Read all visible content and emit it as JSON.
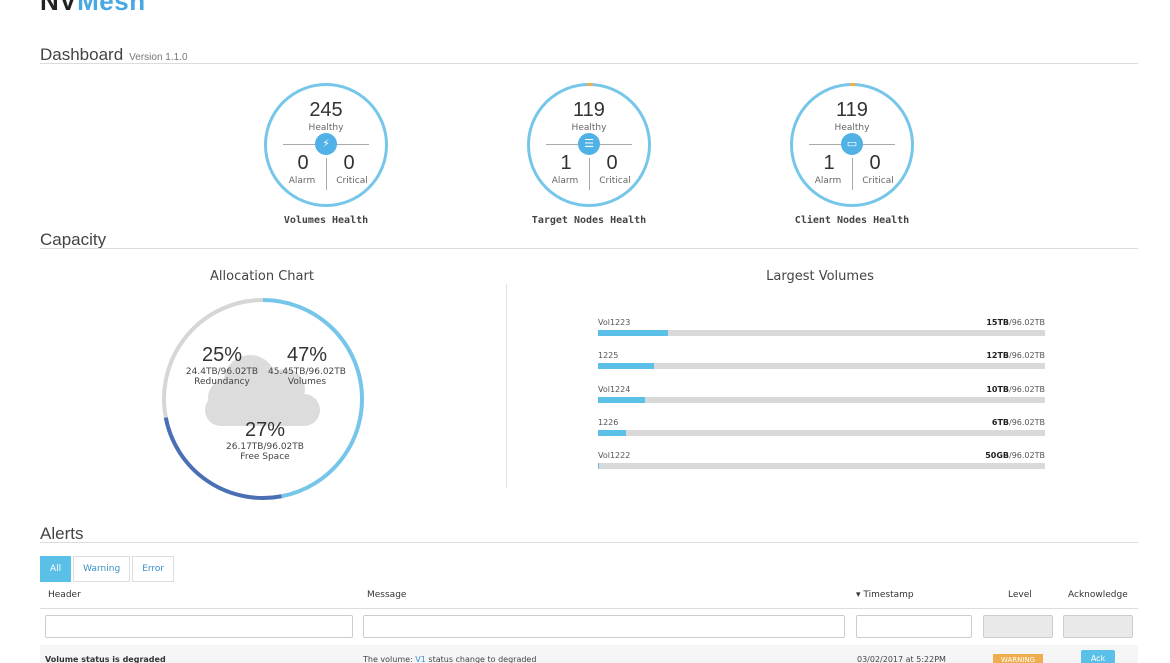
{
  "app": {
    "logo_nv": "NV",
    "logo_mesh": "Mesh"
  },
  "dashboard": {
    "title": "Dashboard",
    "version": "Version 1.1.0"
  },
  "health": [
    {
      "value": "245",
      "status": "Healthy",
      "alarm": "0",
      "critical": "0",
      "alarm_label": "Alarm",
      "critical_label": "Critical",
      "caption": "Volumes Health",
      "icon": "bolt-icon"
    },
    {
      "value": "119",
      "status": "Healthy",
      "alarm": "1",
      "critical": "0",
      "alarm_label": "Alarm",
      "critical_label": "Critical",
      "caption": "Target Nodes Health",
      "icon": "server-icon"
    },
    {
      "value": "119",
      "status": "Healthy",
      "alarm": "1",
      "critical": "0",
      "alarm_label": "Alarm",
      "critical_label": "Critical",
      "caption": "Client Nodes Health",
      "icon": "monitor-icon"
    }
  ],
  "capacity": {
    "title": "Capacity",
    "allocation_title": "Allocation Chart",
    "largest_title": "Largest Volumes",
    "allocation": [
      {
        "pct": "25%",
        "amount": "24.4TB/96.02TB",
        "label": "Redundancy",
        "color": "#4a6fb5"
      },
      {
        "pct": "47%",
        "amount": "45.45TB/96.02TB",
        "label": "Volumes",
        "color": "#76c6ea"
      },
      {
        "pct": "27%",
        "amount": "26.17TB/96.02TB",
        "label": "Free Space",
        "color": "#d6d6d6"
      }
    ],
    "volumes": [
      {
        "name": "Vol1223",
        "used": "15TB",
        "total": "/96.02TB",
        "fraction": 0.1562
      },
      {
        "name": "1225",
        "used": "12TB",
        "total": "/96.02TB",
        "fraction": 0.125
      },
      {
        "name": "Vol1224",
        "used": "10TB",
        "total": "/96.02TB",
        "fraction": 0.1041
      },
      {
        "name": "1226",
        "used": "6TB",
        "total": "/96.02TB",
        "fraction": 0.0625
      },
      {
        "name": "Vol1222",
        "used": "50GB",
        "total": "/96.02TB",
        "fraction": 0.0005
      }
    ]
  },
  "alerts": {
    "title": "Alerts",
    "filters": [
      "All",
      "Warning",
      "Error"
    ],
    "columns": {
      "header": "Header",
      "message": "Message",
      "timestamp": "▾ Timestamp",
      "level": "Level",
      "acknowledge": "Acknowledge"
    },
    "rows": [
      {
        "header": "Volume status is degraded",
        "message_prefix": "The volume: ",
        "message_link": "V1",
        "message_suffix": " status change to degraded",
        "timestamp": "03/02/2017 at 5:22PM",
        "level": "WARNING",
        "ack": "Ack"
      }
    ]
  },
  "colors": {
    "accent": "#5bc0e8",
    "warning": "#f0ad4e",
    "ring": "#76c6ea"
  }
}
